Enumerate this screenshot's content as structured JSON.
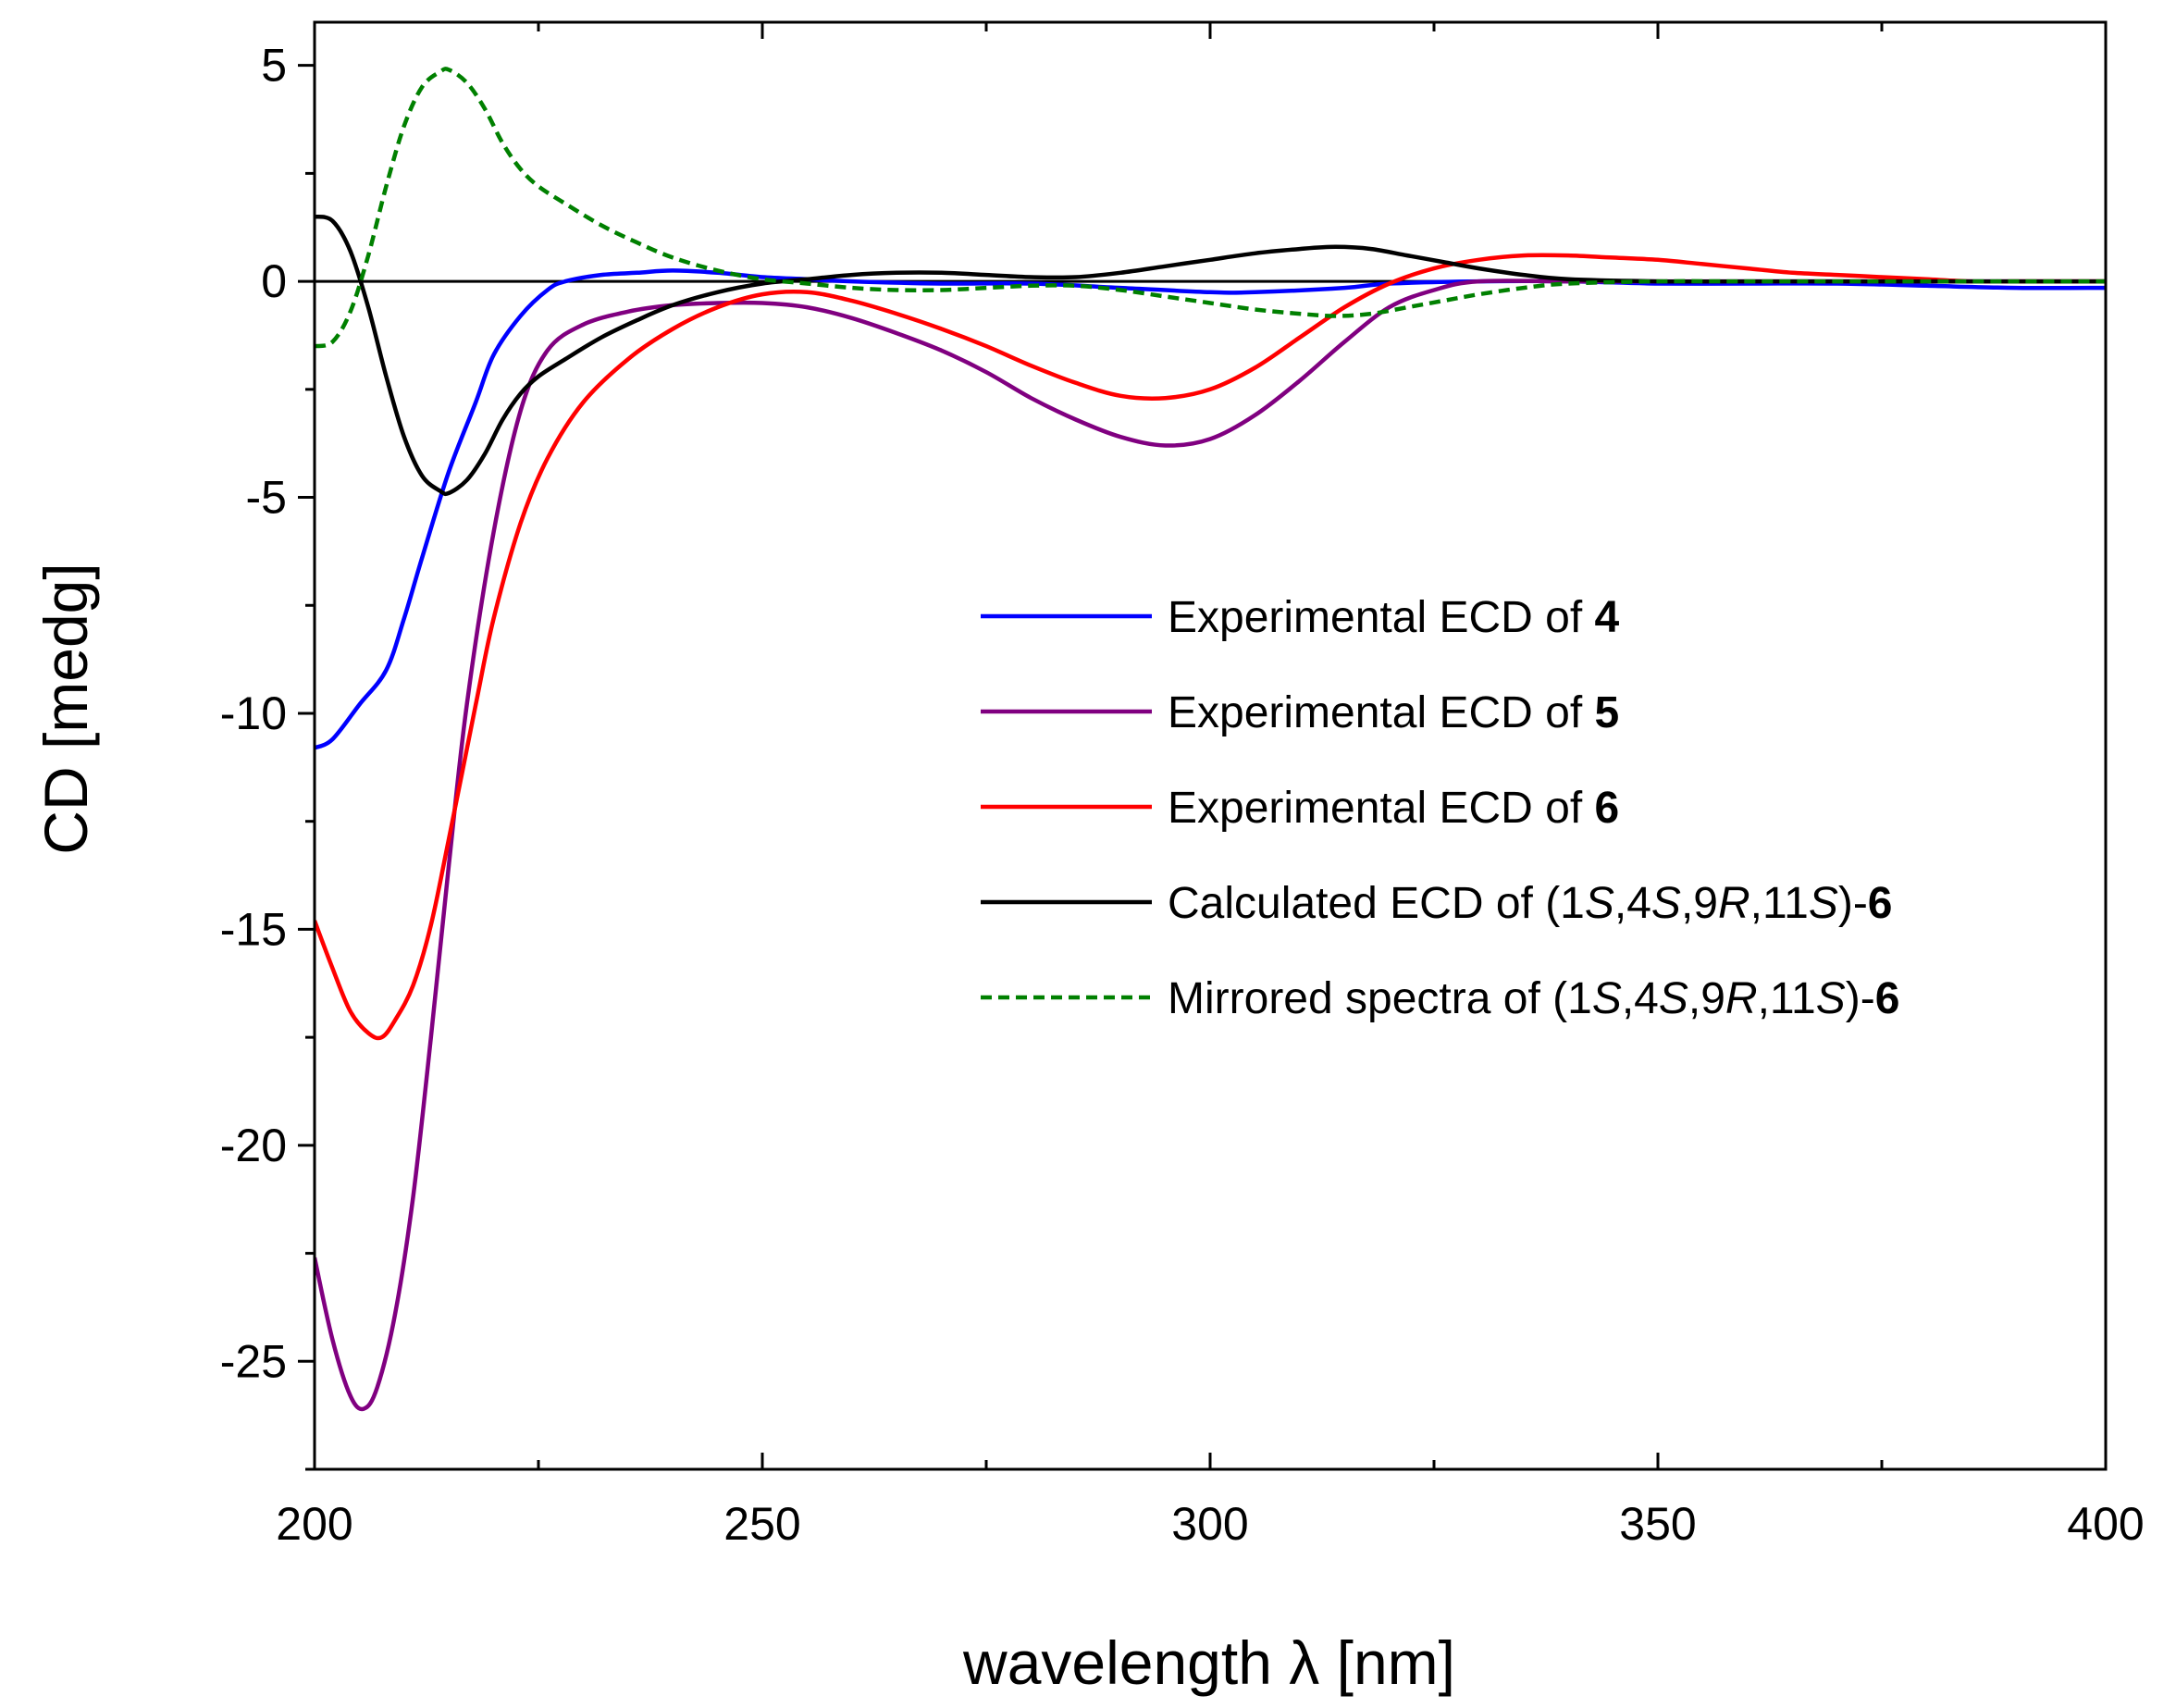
{
  "chart_data": {
    "type": "line",
    "xlabel": "wavelength λ [nm]",
    "ylabel": "CD [medg]",
    "xlim": [
      200,
      400
    ],
    "ylim": [
      -27.5,
      6
    ],
    "x_ticks": [
      200,
      250,
      300,
      350,
      400
    ],
    "y_ticks": [
      5,
      0,
      -5,
      -10,
      -15,
      -20,
      -25
    ],
    "zero_line": true,
    "legend_position": "center-right",
    "series": [
      {
        "name": "Experimental ECD of 4",
        "legend": [
          {
            "t": "Experimental ECD of ",
            "b": false,
            "i": false
          },
          {
            "t": "4",
            "b": true,
            "i": false
          }
        ],
        "color": "#0000ff",
        "dash": "solid",
        "points": [
          [
            200,
            -10.8
          ],
          [
            202,
            -10.6
          ],
          [
            205,
            -9.8
          ],
          [
            208,
            -9.0
          ],
          [
            210,
            -7.8
          ],
          [
            212,
            -6.4
          ],
          [
            215,
            -4.4
          ],
          [
            218,
            -2.8
          ],
          [
            220,
            -1.7
          ],
          [
            223,
            -0.8
          ],
          [
            226,
            -0.2
          ],
          [
            228,
            0.0
          ],
          [
            232,
            0.15
          ],
          [
            236,
            0.2
          ],
          [
            240,
            0.25
          ],
          [
            245,
            0.2
          ],
          [
            250,
            0.1
          ],
          [
            255,
            0.05
          ],
          [
            260,
            0.0
          ],
          [
            270,
            -0.05
          ],
          [
            280,
            -0.05
          ],
          [
            290,
            -0.15
          ],
          [
            300,
            -0.25
          ],
          [
            305,
            -0.25
          ],
          [
            315,
            -0.15
          ],
          [
            320,
            -0.05
          ],
          [
            330,
            0.0
          ],
          [
            340,
            0.0
          ],
          [
            350,
            -0.05
          ],
          [
            360,
            -0.05
          ],
          [
            370,
            -0.05
          ],
          [
            380,
            -0.1
          ],
          [
            390,
            -0.15
          ],
          [
            400,
            -0.15
          ]
        ]
      },
      {
        "name": "Experimental ECD of 5",
        "legend": [
          {
            "t": "Experimental ECD of ",
            "b": false,
            "i": false
          },
          {
            "t": "5",
            "b": true,
            "i": false
          }
        ],
        "color": "#800080",
        "dash": "solid",
        "points": [
          [
            200,
            -22.6
          ],
          [
            202,
            -24.5
          ],
          [
            204,
            -25.8
          ],
          [
            205.5,
            -26.1
          ],
          [
            207,
            -25.6
          ],
          [
            209,
            -23.9
          ],
          [
            211,
            -21.2
          ],
          [
            213,
            -17.5
          ],
          [
            215,
            -13.5
          ],
          [
            217,
            -9.8
          ],
          [
            220,
            -5.8
          ],
          [
            223,
            -3.0
          ],
          [
            226,
            -1.6
          ],
          [
            230,
            -1.0
          ],
          [
            235,
            -0.7
          ],
          [
            240,
            -0.55
          ],
          [
            245,
            -0.5
          ],
          [
            250,
            -0.5
          ],
          [
            255,
            -0.6
          ],
          [
            260,
            -0.85
          ],
          [
            265,
            -1.2
          ],
          [
            270,
            -1.6
          ],
          [
            275,
            -2.1
          ],
          [
            280,
            -2.7
          ],
          [
            285,
            -3.2
          ],
          [
            290,
            -3.6
          ],
          [
            295,
            -3.8
          ],
          [
            300,
            -3.65
          ],
          [
            305,
            -3.1
          ],
          [
            310,
            -2.3
          ],
          [
            315,
            -1.4
          ],
          [
            320,
            -0.6
          ],
          [
            325,
            -0.2
          ],
          [
            330,
            0.0
          ],
          [
            340,
            0.0
          ],
          [
            350,
            0.0
          ],
          [
            360,
            0.0
          ],
          [
            370,
            0.0
          ],
          [
            380,
            0.0
          ],
          [
            390,
            0.0
          ],
          [
            400,
            0.0
          ]
        ]
      },
      {
        "name": "Experimental ECD of 6",
        "legend": [
          {
            "t": "Experimental ECD of ",
            "b": false,
            "i": false
          },
          {
            "t": "6",
            "b": true,
            "i": false
          }
        ],
        "color": "#ff0000",
        "dash": "solid",
        "points": [
          [
            200,
            -14.8
          ],
          [
            202,
            -15.9
          ],
          [
            204,
            -16.9
          ],
          [
            206,
            -17.4
          ],
          [
            207.5,
            -17.5
          ],
          [
            209,
            -17.1
          ],
          [
            211,
            -16.3
          ],
          [
            213,
            -14.9
          ],
          [
            215,
            -12.9
          ],
          [
            218,
            -9.8
          ],
          [
            220,
            -7.8
          ],
          [
            223,
            -5.6
          ],
          [
            226,
            -4.1
          ],
          [
            230,
            -2.8
          ],
          [
            235,
            -1.8
          ],
          [
            240,
            -1.1
          ],
          [
            245,
            -0.6
          ],
          [
            250,
            -0.3
          ],
          [
            255,
            -0.25
          ],
          [
            260,
            -0.45
          ],
          [
            265,
            -0.75
          ],
          [
            270,
            -1.1
          ],
          [
            275,
            -1.5
          ],
          [
            280,
            -1.95
          ],
          [
            285,
            -2.35
          ],
          [
            290,
            -2.65
          ],
          [
            295,
            -2.7
          ],
          [
            300,
            -2.5
          ],
          [
            305,
            -2.0
          ],
          [
            310,
            -1.3
          ],
          [
            315,
            -0.6
          ],
          [
            320,
            -0.05
          ],
          [
            325,
            0.3
          ],
          [
            330,
            0.5
          ],
          [
            335,
            0.6
          ],
          [
            340,
            0.6
          ],
          [
            345,
            0.55
          ],
          [
            350,
            0.5
          ],
          [
            355,
            0.4
          ],
          [
            360,
            0.3
          ],
          [
            365,
            0.2
          ],
          [
            370,
            0.15
          ],
          [
            375,
            0.1
          ],
          [
            380,
            0.05
          ],
          [
            385,
            0.0
          ],
          [
            390,
            0.0
          ],
          [
            400,
            0.0
          ]
        ]
      },
      {
        "name": "Calculated ECD of (1S,4S,9R,11S)-6",
        "legend": [
          {
            "t": "Calculated ECD of (1",
            "b": false,
            "i": false
          },
          {
            "t": "S",
            "b": false,
            "i": true
          },
          {
            "t": ",4",
            "b": false,
            "i": false
          },
          {
            "t": "S",
            "b": false,
            "i": true
          },
          {
            "t": ",9",
            "b": false,
            "i": false
          },
          {
            "t": "R",
            "b": false,
            "i": true
          },
          {
            "t": ",11",
            "b": false,
            "i": false
          },
          {
            "t": "S",
            "b": false,
            "i": true
          },
          {
            "t": ")-",
            "b": false,
            "i": false
          },
          {
            "t": "6",
            "b": true,
            "i": false
          }
        ],
        "color": "#000000",
        "dash": "solid",
        "points": [
          [
            200,
            1.5
          ],
          [
            202,
            1.4
          ],
          [
            204,
            0.7
          ],
          [
            206,
            -0.6
          ],
          [
            208,
            -2.2
          ],
          [
            210,
            -3.6
          ],
          [
            212,
            -4.5
          ],
          [
            214,
            -4.85
          ],
          [
            215,
            -4.9
          ],
          [
            217,
            -4.6
          ],
          [
            219,
            -4.0
          ],
          [
            221,
            -3.2
          ],
          [
            223,
            -2.6
          ],
          [
            225,
            -2.2
          ],
          [
            228,
            -1.8
          ],
          [
            232,
            -1.3
          ],
          [
            236,
            -0.9
          ],
          [
            240,
            -0.55
          ],
          [
            245,
            -0.25
          ],
          [
            250,
            -0.05
          ],
          [
            255,
            0.05
          ],
          [
            260,
            0.15
          ],
          [
            265,
            0.2
          ],
          [
            270,
            0.2
          ],
          [
            275,
            0.15
          ],
          [
            280,
            0.1
          ],
          [
            285,
            0.1
          ],
          [
            290,
            0.2
          ],
          [
            295,
            0.35
          ],
          [
            300,
            0.5
          ],
          [
            305,
            0.65
          ],
          [
            310,
            0.75
          ],
          [
            314,
            0.8
          ],
          [
            318,
            0.75
          ],
          [
            322,
            0.6
          ],
          [
            326,
            0.45
          ],
          [
            330,
            0.3
          ],
          [
            335,
            0.15
          ],
          [
            340,
            0.05
          ],
          [
            350,
            0.0
          ],
          [
            360,
            0.0
          ],
          [
            380,
            0.0
          ],
          [
            400,
            0.0
          ]
        ]
      },
      {
        "name": "Mirrored spectra of (1S,4S,9R,11S)-6",
        "legend": [
          {
            "t": "Mirrored spectra of (1",
            "b": false,
            "i": false
          },
          {
            "t": "S",
            "b": false,
            "i": true
          },
          {
            "t": ",4",
            "b": false,
            "i": false
          },
          {
            "t": "S",
            "b": false,
            "i": true
          },
          {
            "t": ",9",
            "b": false,
            "i": false
          },
          {
            "t": "R",
            "b": false,
            "i": true
          },
          {
            "t": ",11",
            "b": false,
            "i": false
          },
          {
            "t": "S",
            "b": false,
            "i": true
          },
          {
            "t": ")-",
            "b": false,
            "i": false
          },
          {
            "t": "6",
            "b": true,
            "i": false
          }
        ],
        "color": "#008000",
        "dash": "dashed",
        "points": [
          [
            200,
            -1.5
          ],
          [
            202,
            -1.4
          ],
          [
            204,
            -0.7
          ],
          [
            206,
            0.6
          ],
          [
            208,
            2.2
          ],
          [
            210,
            3.6
          ],
          [
            212,
            4.5
          ],
          [
            214,
            4.85
          ],
          [
            215,
            4.9
          ],
          [
            217,
            4.6
          ],
          [
            219,
            4.0
          ],
          [
            221,
            3.2
          ],
          [
            223,
            2.6
          ],
          [
            225,
            2.2
          ],
          [
            228,
            1.8
          ],
          [
            232,
            1.3
          ],
          [
            236,
            0.9
          ],
          [
            240,
            0.55
          ],
          [
            245,
            0.25
          ],
          [
            250,
            0.05
          ],
          [
            255,
            -0.05
          ],
          [
            260,
            -0.15
          ],
          [
            265,
            -0.2
          ],
          [
            270,
            -0.2
          ],
          [
            275,
            -0.15
          ],
          [
            280,
            -0.1
          ],
          [
            285,
            -0.1
          ],
          [
            290,
            -0.2
          ],
          [
            295,
            -0.35
          ],
          [
            300,
            -0.5
          ],
          [
            305,
            -0.65
          ],
          [
            310,
            -0.75
          ],
          [
            314,
            -0.8
          ],
          [
            318,
            -0.75
          ],
          [
            322,
            -0.6
          ],
          [
            326,
            -0.45
          ],
          [
            330,
            -0.3
          ],
          [
            335,
            -0.15
          ],
          [
            340,
            -0.05
          ],
          [
            350,
            0.0
          ],
          [
            360,
            0.0
          ],
          [
            380,
            0.0
          ],
          [
            400,
            0.0
          ]
        ]
      }
    ]
  }
}
